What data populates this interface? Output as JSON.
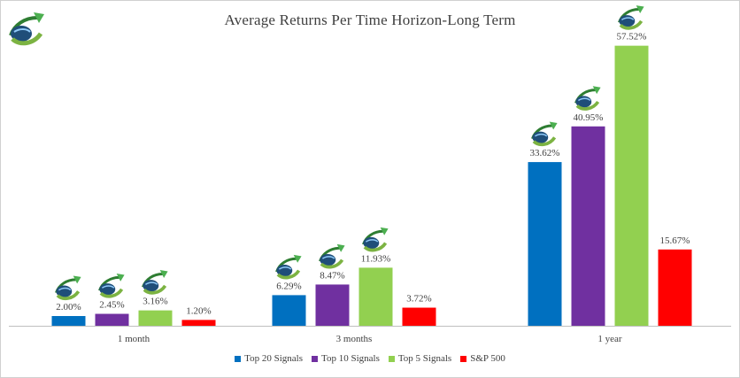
{
  "colors": {
    "top20": "#0070c0",
    "top10": "#7030a0",
    "top5": "#92d050",
    "sp500": "#ff0000",
    "axis": "#bfbfbf",
    "label_text": "#404040"
  },
  "icons": {
    "marker": "growth-arrow-logo-icon"
  },
  "chart_data": {
    "type": "bar",
    "title": "Average Returns Per Time Horizon-Long Term",
    "xlabel": "",
    "ylabel": "",
    "categories": [
      "1 month",
      "3 months",
      "1 year"
    ],
    "series": [
      {
        "name": "Top 20 Signals",
        "color": "#0070c0",
        "values": [
          2.0,
          6.29,
          33.62
        ],
        "labels": [
          "2.00%",
          "6.29%",
          "33.62%"
        ]
      },
      {
        "name": "Top 10 Signals",
        "color": "#7030a0",
        "values": [
          2.45,
          8.47,
          40.95
        ],
        "labels": [
          "2.45%",
          "8.47%",
          "40.95%"
        ]
      },
      {
        "name": "Top 5 Signals",
        "color": "#92d050",
        "values": [
          3.16,
          11.93,
          57.52
        ],
        "labels": [
          "3.16%",
          "11.93%",
          "57.52%"
        ]
      },
      {
        "name": "S&P 500",
        "color": "#ff0000",
        "values": [
          1.2,
          3.72,
          15.67
        ],
        "labels": [
          "1.20%",
          "3.72%",
          "15.67%"
        ]
      }
    ],
    "ylim": [
      0,
      60
    ],
    "grid": false,
    "legend_position": "bottom",
    "markers_on_series": [
      "Top 20 Signals",
      "Top 10 Signals",
      "Top 5 Signals"
    ]
  }
}
